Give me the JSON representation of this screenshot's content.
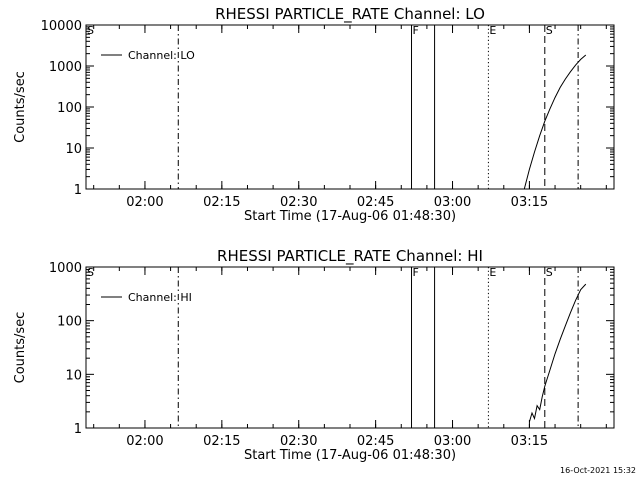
{
  "footer": {
    "timestamp": "16-Oct-2021 15:32"
  },
  "chart_data": [
    {
      "type": "line",
      "title": "RHESSI PARTICLE_RATE Channel: LO",
      "xlabel": "Start Time (17-Aug-06 01:48:30)",
      "ylabel": "Counts/sec",
      "scale": {
        "x": "linear",
        "y": "log"
      },
      "xlim": [
        "01:48:30",
        "03:31:30"
      ],
      "ylim": [
        1,
        10000
      ],
      "x_ticks": [
        "02:00",
        "02:15",
        "02:30",
        "02:45",
        "03:00",
        "03:15"
      ],
      "y_ticks": [
        "1",
        "10",
        "100",
        "1000",
        "10000"
      ],
      "legend": {
        "position": "top-left",
        "entries": [
          "Channel: LO"
        ]
      },
      "series": [
        {
          "name": "Channel: LO",
          "x": [
            "03:14:00",
            "03:15:00",
            "03:16:00",
            "03:17:00",
            "03:18:00",
            "03:19:00",
            "03:20:00",
            "03:21:00",
            "03:22:00",
            "03:23:00",
            "03:24:00",
            "03:25:00",
            "03:26:00"
          ],
          "y": [
            1,
            3,
            8,
            20,
            45,
            90,
            170,
            300,
            480,
            720,
            1050,
            1450,
            1850
          ]
        }
      ],
      "markers": [
        {
          "label": "S",
          "time": "01:48:30",
          "style": "none"
        },
        {
          "label": "",
          "time": "02:06:30",
          "style": "dashdot"
        },
        {
          "label": "F",
          "time": "02:52:00",
          "style": "solid"
        },
        {
          "label": "",
          "time": "02:56:30",
          "style": "solid"
        },
        {
          "label": "E",
          "time": "03:07:00",
          "style": "dotted"
        },
        {
          "label": "S",
          "time": "03:18:00",
          "style": "dashed"
        },
        {
          "label": "",
          "time": "03:24:30",
          "style": "dashdot"
        }
      ]
    },
    {
      "type": "line",
      "title": "RHESSI PARTICLE_RATE Channel: HI",
      "xlabel": "Start Time (17-Aug-06 01:48:30)",
      "ylabel": "Counts/sec",
      "scale": {
        "x": "linear",
        "y": "log"
      },
      "xlim": [
        "01:48:30",
        "03:31:30"
      ],
      "ylim": [
        1,
        1000
      ],
      "x_ticks": [
        "02:00",
        "02:15",
        "02:30",
        "02:45",
        "03:00",
        "03:15"
      ],
      "y_ticks": [
        "1",
        "10",
        "100",
        "1000"
      ],
      "legend": {
        "position": "top-left",
        "entries": [
          "Channel: HI"
        ]
      },
      "series": [
        {
          "name": "Channel: HI",
          "x": [
            "03:15:00",
            "03:15:30",
            "03:16:00",
            "03:16:30",
            "03:17:00",
            "03:17:30",
            "03:18:00",
            "03:19:00",
            "03:20:00",
            "03:21:00",
            "03:22:00",
            "03:23:00",
            "03:24:00",
            "03:25:00",
            "03:26:00"
          ],
          "y": [
            1.3,
            1.9,
            1.5,
            2.6,
            2.2,
            3.8,
            6,
            12,
            24,
            45,
            80,
            140,
            240,
            380,
            480
          ]
        }
      ],
      "markers": [
        {
          "label": "S",
          "time": "01:48:30",
          "style": "none"
        },
        {
          "label": "",
          "time": "02:06:30",
          "style": "dashdot"
        },
        {
          "label": "F",
          "time": "02:52:00",
          "style": "solid"
        },
        {
          "label": "",
          "time": "02:56:30",
          "style": "solid"
        },
        {
          "label": "E",
          "time": "03:07:00",
          "style": "dotted"
        },
        {
          "label": "S",
          "time": "03:18:00",
          "style": "dashed"
        },
        {
          "label": "",
          "time": "03:24:30",
          "style": "dashdot"
        }
      ]
    }
  ]
}
